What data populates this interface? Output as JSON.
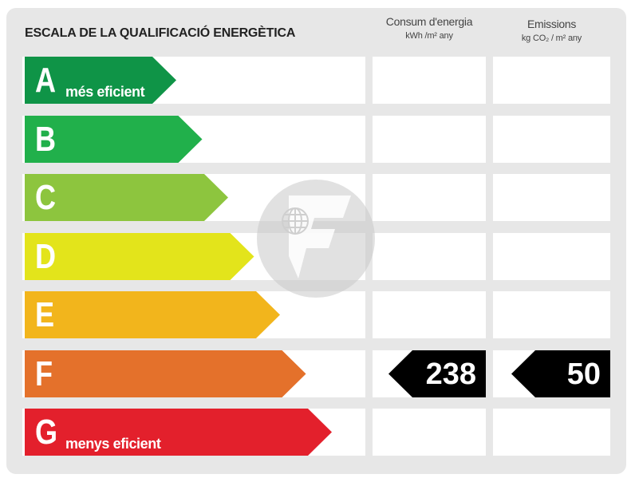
{
  "title": "ESCALA DE LA QUALIFICACIÓ ENERGÈTICA",
  "columns": {
    "energy": {
      "label": "Consum d'energia",
      "unit": "kWh /m² any"
    },
    "emissions": {
      "label": "Emissions",
      "unit": "kg CO₂ / m² any"
    }
  },
  "ratings": [
    {
      "letter": "A",
      "caption": "més eficient",
      "color": "#0f9447"
    },
    {
      "letter": "B",
      "caption": "",
      "color": "#21b04b"
    },
    {
      "letter": "C",
      "caption": "",
      "color": "#8dc53e"
    },
    {
      "letter": "D",
      "caption": "",
      "color": "#e3e41b"
    },
    {
      "letter": "E",
      "caption": "",
      "color": "#f2b51c"
    },
    {
      "letter": "F",
      "caption": "",
      "color": "#e4712b"
    },
    {
      "letter": "G",
      "caption": "menys eficient",
      "color": "#e3202c"
    }
  ],
  "current": {
    "rating_index": 5,
    "energy_value": "238",
    "emissions_value": "50"
  },
  "watermark_icon": "certification-logo-icon"
}
